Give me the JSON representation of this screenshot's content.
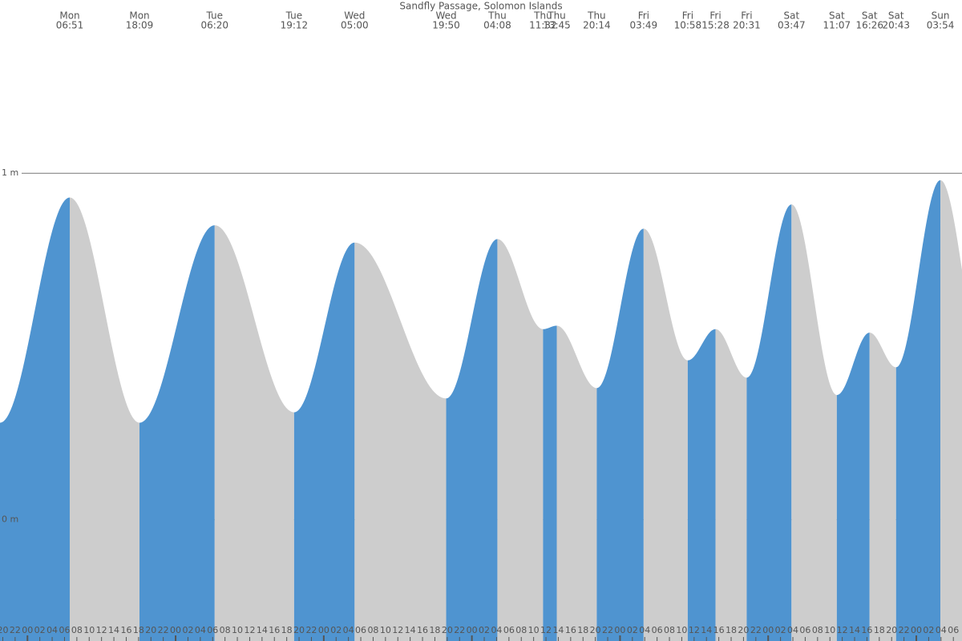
{
  "chart_data": {
    "type": "tide",
    "title": "Sandfly Passage, Solomon Islands",
    "days": [
      "Mon",
      "Mon",
      "Tue",
      "Tue",
      "Wed",
      "Wed",
      "Thu",
      "Thu",
      "Thu",
      "Thu",
      "Fri",
      "Fri",
      "Fri",
      "Fri",
      "Sat",
      "Sat",
      "Sat",
      "Sat",
      "Sun"
    ],
    "times": [
      "06:51",
      "18:09",
      "06:20",
      "19:12",
      "05:00",
      "19:50",
      "04:08",
      "11:32",
      "13:45",
      "20:14",
      "03:49",
      "10:58",
      "15:28",
      "20:31",
      "03:47",
      "11:07",
      "16:26",
      "20:43",
      "03:54"
    ],
    "x": [
      6.85,
      18.15,
      30.33,
      43.2,
      53,
      67.83,
      76.13,
      83.53,
      85.75,
      92.23,
      99.82,
      106.97,
      111.47,
      116.52,
      123.78,
      131.12,
      136.43,
      140.72,
      147.9
    ],
    "values": [
      0.93,
      0.28,
      0.85,
      0.31,
      0.8,
      0.35,
      0.81,
      0.55,
      0.56,
      0.38,
      0.84,
      0.46,
      0.55,
      0.41,
      0.91,
      0.36,
      0.54,
      0.44,
      0.98
    ],
    "colors": {
      "rising": "#4f94d0",
      "falling": "#cdcdcd"
    },
    "xlim": [
      -4.45,
      151.4
    ],
    "ylim": [
      -0.35,
      1.5
    ],
    "yticks": [
      {
        "value": 1,
        "label": "1 m"
      },
      {
        "value": 0,
        "label": "0 m"
      }
    ],
    "grid": true,
    "xticks": [
      {
        "value": -4,
        "label": "20"
      },
      {
        "value": -2,
        "label": "22"
      },
      {
        "value": 0,
        "label": "00"
      },
      {
        "value": 2,
        "label": "02"
      },
      {
        "value": 4,
        "label": "04"
      },
      {
        "value": 6,
        "label": "06"
      },
      {
        "value": 8,
        "label": "08"
      },
      {
        "value": 10,
        "label": "10"
      },
      {
        "value": 12,
        "label": "12"
      },
      {
        "value": 14,
        "label": "14"
      },
      {
        "value": 16,
        "label": "16"
      },
      {
        "value": 18,
        "label": "18"
      },
      {
        "value": 20,
        "label": "20"
      },
      {
        "value": 22,
        "label": "22"
      },
      {
        "value": 24,
        "label": "00"
      },
      {
        "value": 26,
        "label": "02"
      },
      {
        "value": 28,
        "label": "04"
      },
      {
        "value": 30,
        "label": "06"
      },
      {
        "value": 32,
        "label": "08"
      },
      {
        "value": 34,
        "label": "10"
      },
      {
        "value": 36,
        "label": "12"
      },
      {
        "value": 38,
        "label": "14"
      },
      {
        "value": 40,
        "label": "16"
      },
      {
        "value": 42,
        "label": "18"
      },
      {
        "value": 44,
        "label": "20"
      },
      {
        "value": 46,
        "label": "22"
      },
      {
        "value": 48,
        "label": "00"
      },
      {
        "value": 50,
        "label": "02"
      },
      {
        "value": 52,
        "label": "04"
      },
      {
        "value": 54,
        "label": "06"
      },
      {
        "value": 56,
        "label": "08"
      },
      {
        "value": 58,
        "label": "10"
      },
      {
        "value": 60,
        "label": "12"
      },
      {
        "value": 62,
        "label": "14"
      },
      {
        "value": 64,
        "label": "16"
      },
      {
        "value": 66,
        "label": "18"
      },
      {
        "value": 68,
        "label": "20"
      },
      {
        "value": 70,
        "label": "22"
      },
      {
        "value": 72,
        "label": "00"
      },
      {
        "value": 74,
        "label": "02"
      },
      {
        "value": 76,
        "label": "04"
      },
      {
        "value": 78,
        "label": "06"
      },
      {
        "value": 80,
        "label": "08"
      },
      {
        "value": 82,
        "label": "10"
      },
      {
        "value": 84,
        "label": "12"
      },
      {
        "value": 86,
        "label": "14"
      },
      {
        "value": 88,
        "label": "16"
      },
      {
        "value": 90,
        "label": "18"
      },
      {
        "value": 92,
        "label": "20"
      },
      {
        "value": 94,
        "label": "22"
      },
      {
        "value": 96,
        "label": "00"
      },
      {
        "value": 98,
        "label": "02"
      },
      {
        "value": 100,
        "label": "04"
      },
      {
        "value": 102,
        "label": "06"
      },
      {
        "value": 104,
        "label": "08"
      },
      {
        "value": 106,
        "label": "10"
      },
      {
        "value": 108,
        "label": "12"
      },
      {
        "value": 110,
        "label": "14"
      },
      {
        "value": 112,
        "label": "16"
      },
      {
        "value": 114,
        "label": "18"
      },
      {
        "value": 116,
        "label": "20"
      },
      {
        "value": 118,
        "label": "22"
      },
      {
        "value": 120,
        "label": "00"
      },
      {
        "value": 122,
        "label": "02"
      },
      {
        "value": 124,
        "label": "04"
      },
      {
        "value": 126,
        "label": "06"
      },
      {
        "value": 128,
        "label": "08"
      },
      {
        "value": 130,
        "label": "10"
      },
      {
        "value": 132,
        "label": "12"
      },
      {
        "value": 134,
        "label": "14"
      },
      {
        "value": 136,
        "label": "16"
      },
      {
        "value": 138,
        "label": "18"
      },
      {
        "value": 140,
        "label": "20"
      },
      {
        "value": 142,
        "label": "22"
      },
      {
        "value": 144,
        "label": "00"
      },
      {
        "value": 146,
        "label": "02"
      },
      {
        "value": 148,
        "label": "04"
      },
      {
        "value": 150,
        "label": "06"
      }
    ]
  }
}
